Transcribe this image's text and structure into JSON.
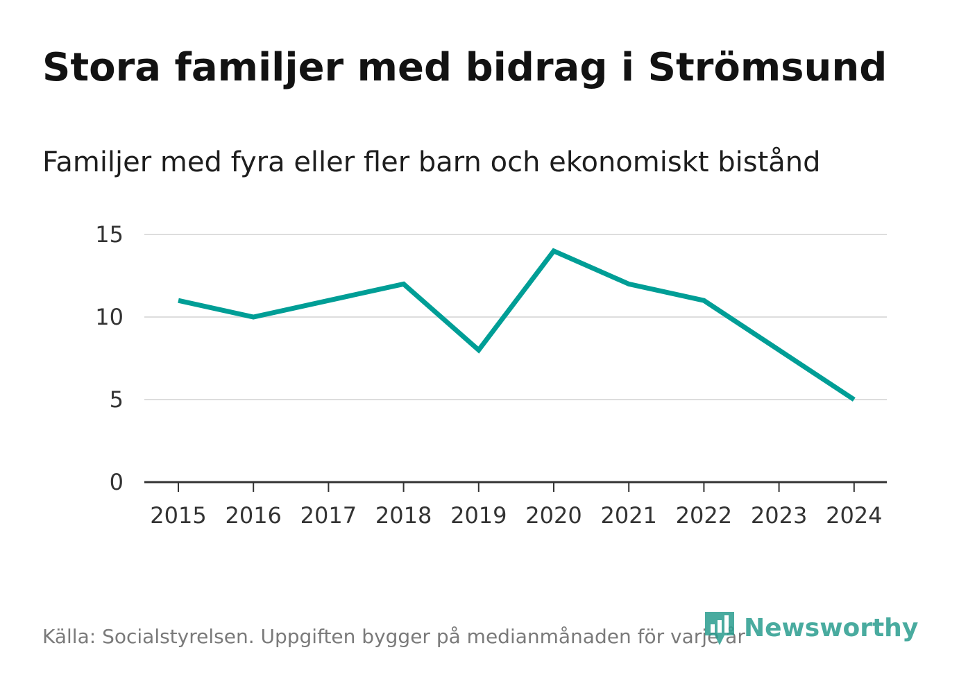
{
  "title": "Stora familjer med bidrag i Strömsund",
  "subtitle": "Familjer med fyra eller fler barn och ekonomiskt bistånd",
  "source": "Källa: Socialstyrelsen. Uppgiften bygger på medianmånaden för varje år",
  "logo": {
    "text": "Newsworthy",
    "icon": "bar-chart-pin-icon"
  },
  "colors": {
    "line": "#009e96",
    "grid": "#dddddd",
    "axis": "#333333",
    "logo": "#2a9d8f"
  },
  "chart_data": {
    "type": "line",
    "title": "Stora familjer med bidrag i Strömsund",
    "subtitle": "Familjer med fyra eller fler barn och ekonomiskt bistånd",
    "x": [
      "2015",
      "2016",
      "2017",
      "2018",
      "2019",
      "2020",
      "2021",
      "2022",
      "2023",
      "2024"
    ],
    "series": [
      {
        "values": [
          11,
          10,
          11,
          12,
          8,
          14,
          12,
          11,
          8,
          5
        ]
      }
    ],
    "ylim": [
      0,
      15
    ],
    "yticks": [
      0,
      5,
      10,
      15
    ],
    "grid": true,
    "legend": "none"
  }
}
